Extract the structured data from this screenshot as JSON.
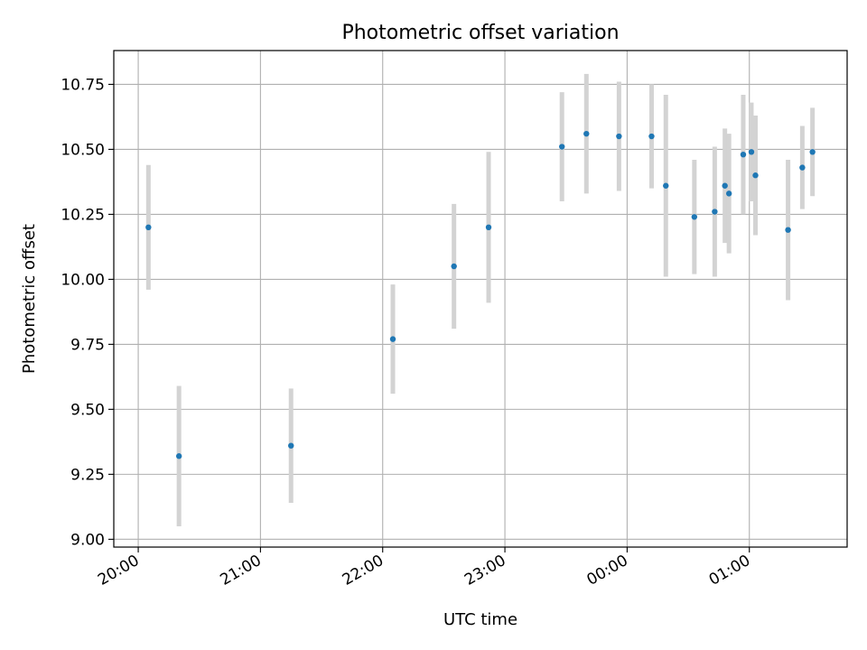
{
  "chart_data": {
    "type": "scatter",
    "title": "Photometric offset variation",
    "xlabel": "UTC time",
    "ylabel": "Photometric offset",
    "x_tick_labels": [
      "20:00",
      "21:00",
      "22:00",
      "23:00",
      "00:00",
      "01:00"
    ],
    "x_ticks": [
      "20:00",
      "21:00",
      "22:00",
      "23:00",
      "24:00",
      "25:00"
    ],
    "xlim": [
      "19:48",
      "25:48"
    ],
    "y_ticks": [
      9.0,
      9.25,
      9.5,
      9.75,
      10.0,
      10.25,
      10.5,
      10.75
    ],
    "y_tick_labels": [
      "9.00",
      "9.25",
      "9.50",
      "9.75",
      "10.00",
      "10.25",
      "10.50",
      "10.75"
    ],
    "ylim": [
      8.97,
      10.88
    ],
    "grid": true,
    "marker_color": "#1f77b4",
    "errorbar_color": "#d3d3d3",
    "points": [
      {
        "t": "20:05",
        "y": 10.2,
        "err": 0.24
      },
      {
        "t": "20:20",
        "y": 9.32,
        "err": 0.27
      },
      {
        "t": "21:15",
        "y": 9.36,
        "err": 0.22
      },
      {
        "t": "22:05",
        "y": 9.77,
        "err": 0.21
      },
      {
        "t": "22:35",
        "y": 10.05,
        "err": 0.24
      },
      {
        "t": "22:52",
        "y": 10.2,
        "err": 0.29
      },
      {
        "t": "23:28",
        "y": 10.51,
        "err": 0.21
      },
      {
        "t": "23:40",
        "y": 10.56,
        "err": 0.23
      },
      {
        "t": "23:56",
        "y": 10.55,
        "err": 0.21
      },
      {
        "t": "24:12",
        "y": 10.55,
        "err": 0.2
      },
      {
        "t": "24:19",
        "y": 10.36,
        "err": 0.35
      },
      {
        "t": "24:33",
        "y": 10.24,
        "err": 0.22
      },
      {
        "t": "24:43",
        "y": 10.26,
        "err": 0.25
      },
      {
        "t": "24:48",
        "y": 10.36,
        "err": 0.22
      },
      {
        "t": "24:50",
        "y": 10.33,
        "err": 0.23
      },
      {
        "t": "24:57",
        "y": 10.48,
        "err": 0.23
      },
      {
        "t": "25:01",
        "y": 10.49,
        "err": 0.19
      },
      {
        "t": "25:03",
        "y": 10.4,
        "err": 0.23
      },
      {
        "t": "25:19",
        "y": 10.19,
        "err": 0.27
      },
      {
        "t": "25:26",
        "y": 10.43,
        "err": 0.16
      },
      {
        "t": "25:31",
        "y": 10.49,
        "err": 0.17
      }
    ]
  }
}
